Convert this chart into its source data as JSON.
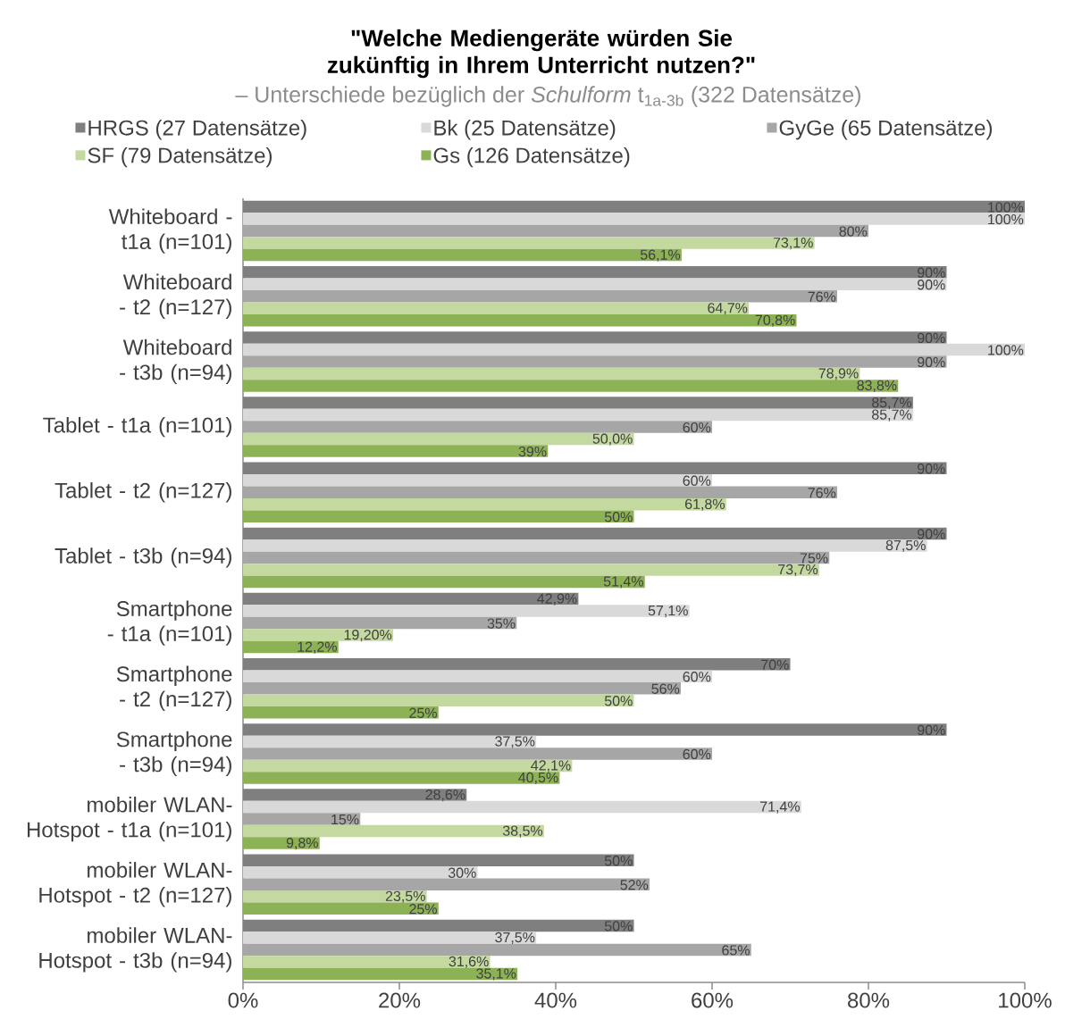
{
  "chart_data": {
    "type": "bar",
    "orientation": "horizontal",
    "title": "\"Welche Mediengeräte würden Sie zukünftig in Ihrem Unterricht nutzen?\"",
    "subtitle": "– Unterschiede bezüglich der *Schulform* t$_{1a-3b}$ (322 Datensätze)",
    "categories": [
      "Whiteboard - t1a (n=101)",
      "Whiteboard - t2 (n=127)",
      "Whiteboard - t3b (n=94)",
      "Tablet - t1a (n=101)",
      "Tablet - t2 (n=127)",
      "Tablet - t3b (n=94)",
      "Smartphone - t1a (n=101)",
      "Smartphone - t2 (n=127)",
      "Smartphone - t3b (n=94)",
      "mobiler WLAN-Hotspot - t1a (n=101)",
      "mobiler WLAN-Hotspot - t2 (n=127)",
      "mobiler WLAN-Hotspot - t3b (n=94)"
    ],
    "series": [
      {
        "name": "HRGS (27 Datensätze)",
        "color": "#7f7f7f",
        "values": [
          100,
          90,
          90,
          85.7,
          90,
          90,
          42.9,
          70,
          90,
          28.6,
          50,
          50
        ],
        "value_labels": [
          "100%",
          "90%",
          "90%",
          "85,7%",
          "90%",
          "90%",
          "42,9%",
          "70%",
          "90%",
          "28,6%",
          "50%",
          "50%"
        ]
      },
      {
        "name": "Bk (25 Datensätze)",
        "color": "#d9d9d9",
        "values": [
          100,
          90,
          100,
          85.7,
          60,
          87.5,
          57.1,
          60,
          37.5,
          71.4,
          30,
          37.5
        ],
        "value_labels": [
          "100%",
          "90%",
          "100%",
          "85,7%",
          "60%",
          "87,5%",
          "57,1%",
          "60%",
          "37,5%",
          "71,4%",
          "30%",
          "37,5%"
        ]
      },
      {
        "name": "GyGe (65 Datensätze)",
        "color": "#a6a6a6",
        "values": [
          80,
          76,
          90,
          60,
          76,
          75,
          35,
          56,
          60,
          15,
          52,
          65
        ],
        "value_labels": [
          "80%",
          "76%",
          "90%",
          "60%",
          "76%",
          "75%",
          "35%",
          "56%",
          "60%",
          "15%",
          "52%",
          "65%"
        ]
      },
      {
        "name": "SF (79 Datensätze)",
        "color": "#c4d9a0",
        "values": [
          73.1,
          64.7,
          78.9,
          50.0,
          61.8,
          73.7,
          19.2,
          50,
          42.1,
          38.5,
          23.5,
          31.6
        ],
        "value_labels": [
          "73,1%",
          "64,7%",
          "78,9%",
          "50,0%",
          "61,8%",
          "73,7%",
          "19,20%",
          "50%",
          "42,1%",
          "38,5%",
          "23,5%",
          "31,6%"
        ]
      },
      {
        "name": "Gs (126 Datensätze)",
        "color": "#8db255",
        "values": [
          56.1,
          70.8,
          83.8,
          39,
          50,
          51.4,
          12.2,
          25,
          40.5,
          9.8,
          25,
          35.1
        ],
        "value_labels": [
          "56,1%",
          "70,8%",
          "83,8%",
          "39%",
          "50%",
          "51,4%",
          "12,2%",
          "25%",
          "40,5%",
          "9,8%",
          "25%",
          "35,1%"
        ]
      }
    ],
    "xlim": [
      0,
      100
    ],
    "xticks": [
      {
        "value": 0,
        "label": "0%"
      },
      {
        "value": 20,
        "label": "20%"
      },
      {
        "value": 40,
        "label": "40%"
      },
      {
        "value": 60,
        "label": "60%"
      },
      {
        "value": 80,
        "label": "80%"
      },
      {
        "value": 100,
        "label": "100%"
      }
    ],
    "legend": "top",
    "grid": false
  }
}
